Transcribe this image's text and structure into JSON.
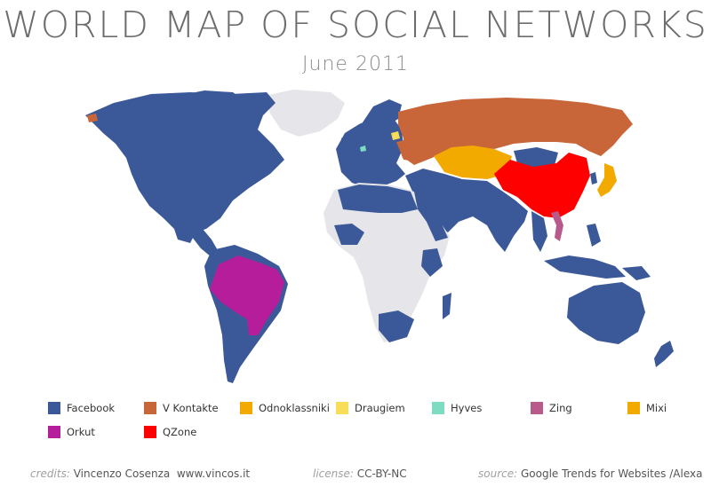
{
  "title": "WORLD MAP OF SOCIAL NETWORKS",
  "subtitle": "June 2011",
  "map": {
    "colors": {
      "ocean": "#ffffff",
      "no_data": "#e6e6ea",
      "facebook": "#3b5998",
      "vkontakte": "#c8663a",
      "odnoklassniki": "#f2a900",
      "draugiem": "#f7dd58",
      "hyves": "#7ddcc2",
      "zing": "#b85b8a",
      "mixi": "#f2a900",
      "orkut": "#b51d9b",
      "qzone": "#ff0000"
    }
  },
  "legend": [
    {
      "label": "Facebook",
      "color": "#3b5998"
    },
    {
      "label": "V Kontakte",
      "color": "#c8663a"
    },
    {
      "label": "Odnoklassniki",
      "color": "#f2a900"
    },
    {
      "label": "Draugiem",
      "color": "#f7dd58"
    },
    {
      "label": "Hyves",
      "color": "#7ddcc2"
    },
    {
      "label": "Zing",
      "color": "#b85b8a"
    },
    {
      "label": "Mixi",
      "color": "#f2a900"
    },
    {
      "label": "Orkut",
      "color": "#b51d9b"
    },
    {
      "label": "QZone",
      "color": "#ff0000"
    }
  ],
  "footer": {
    "credits_key": "credits:",
    "credits_value": "Vincenzo Cosenza  www.vincos.it",
    "license_key": "license:",
    "license_value": "CC-BY-NC",
    "source_key": "source:",
    "source_value": "Google Trends for Websites /Alexa"
  }
}
